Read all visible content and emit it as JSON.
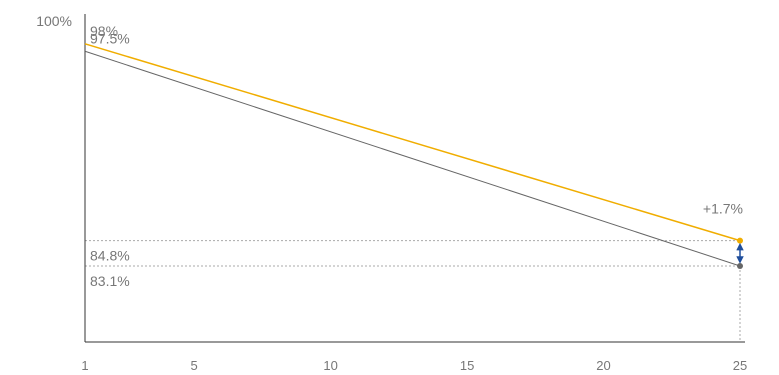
{
  "chart_data": {
    "type": "line",
    "x": [
      1,
      25
    ],
    "xticks": [
      "1",
      "5",
      "10",
      "15",
      "20",
      "25"
    ],
    "xlim": [
      1,
      25
    ],
    "ylim": [
      78,
      100
    ],
    "ytick_top_label": "100%",
    "series": [
      {
        "color": "#f0ad00",
        "values": [
          98,
          84.8
        ],
        "start_label": "98%",
        "end_label": "84.8%"
      },
      {
        "color": "#666666",
        "values": [
          97.5,
          83.1
        ],
        "start_label": "97.5%",
        "end_label": "83.1%"
      }
    ],
    "annotation": {
      "text": "+1.7%",
      "at_x": 25,
      "arrow_color": "#1f4e9c"
    },
    "grid": false
  }
}
